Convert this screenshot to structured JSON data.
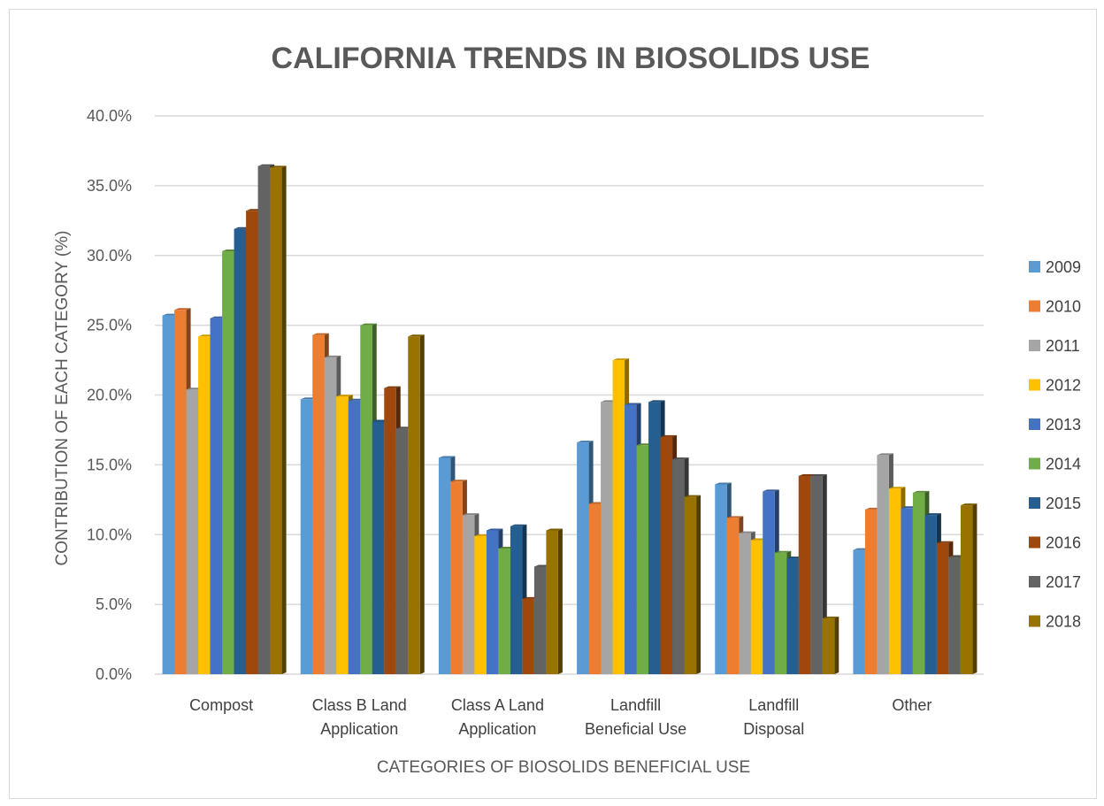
{
  "chart_data": {
    "type": "bar",
    "title": "CALIFORNIA TRENDS IN BIOSOLIDS USE",
    "xlabel": "CATEGORIES OF BIOSOLIDS BENEFICIAL USE",
    "ylabel": "CONTRIBUTION OF EACH CATEGORY (%)",
    "ylim": [
      0,
      40
    ],
    "ytick_step": 5,
    "ytick_format": "percent_1dp",
    "grid": true,
    "legend_position": "right",
    "categories": [
      [
        "Compost"
      ],
      [
        "Class B Land",
        "Application"
      ],
      [
        "Class A Land",
        "Application"
      ],
      [
        "Landfill",
        "Beneficial Use"
      ],
      [
        "Landfill",
        "Disposal"
      ],
      [
        "Other"
      ]
    ],
    "series": [
      {
        "name": "2009",
        "color": "#5b9bd5",
        "values": [
          25.7,
          19.7,
          15.5,
          16.6,
          13.6,
          8.9
        ]
      },
      {
        "name": "2010",
        "color": "#ed7d31",
        "values": [
          26.1,
          24.3,
          13.8,
          12.2,
          11.2,
          11.8
        ]
      },
      {
        "name": "2011",
        "color": "#a5a5a5",
        "values": [
          20.4,
          22.7,
          11.4,
          19.5,
          10.1,
          15.7
        ]
      },
      {
        "name": "2012",
        "color": "#ffc000",
        "values": [
          24.2,
          19.9,
          9.9,
          22.5,
          9.6,
          13.3
        ]
      },
      {
        "name": "2013",
        "color": "#4472c4",
        "values": [
          25.5,
          19.6,
          10.3,
          19.3,
          13.1,
          11.9
        ]
      },
      {
        "name": "2014",
        "color": "#70ad47",
        "values": [
          30.3,
          25.0,
          9.0,
          16.4,
          8.7,
          13.0
        ]
      },
      {
        "name": "2015",
        "color": "#255e91",
        "values": [
          31.9,
          18.1,
          10.6,
          19.5,
          8.3,
          11.4
        ]
      },
      {
        "name": "2016",
        "color": "#9e480e",
        "values": [
          33.2,
          20.5,
          5.4,
          17.0,
          14.2,
          9.4
        ]
      },
      {
        "name": "2017",
        "color": "#636363",
        "values": [
          36.4,
          17.6,
          7.7,
          15.4,
          14.2,
          8.4
        ]
      },
      {
        "name": "2018",
        "color": "#997300",
        "values": [
          36.3,
          24.2,
          10.3,
          12.7,
          4.0,
          12.1
        ]
      }
    ]
  }
}
